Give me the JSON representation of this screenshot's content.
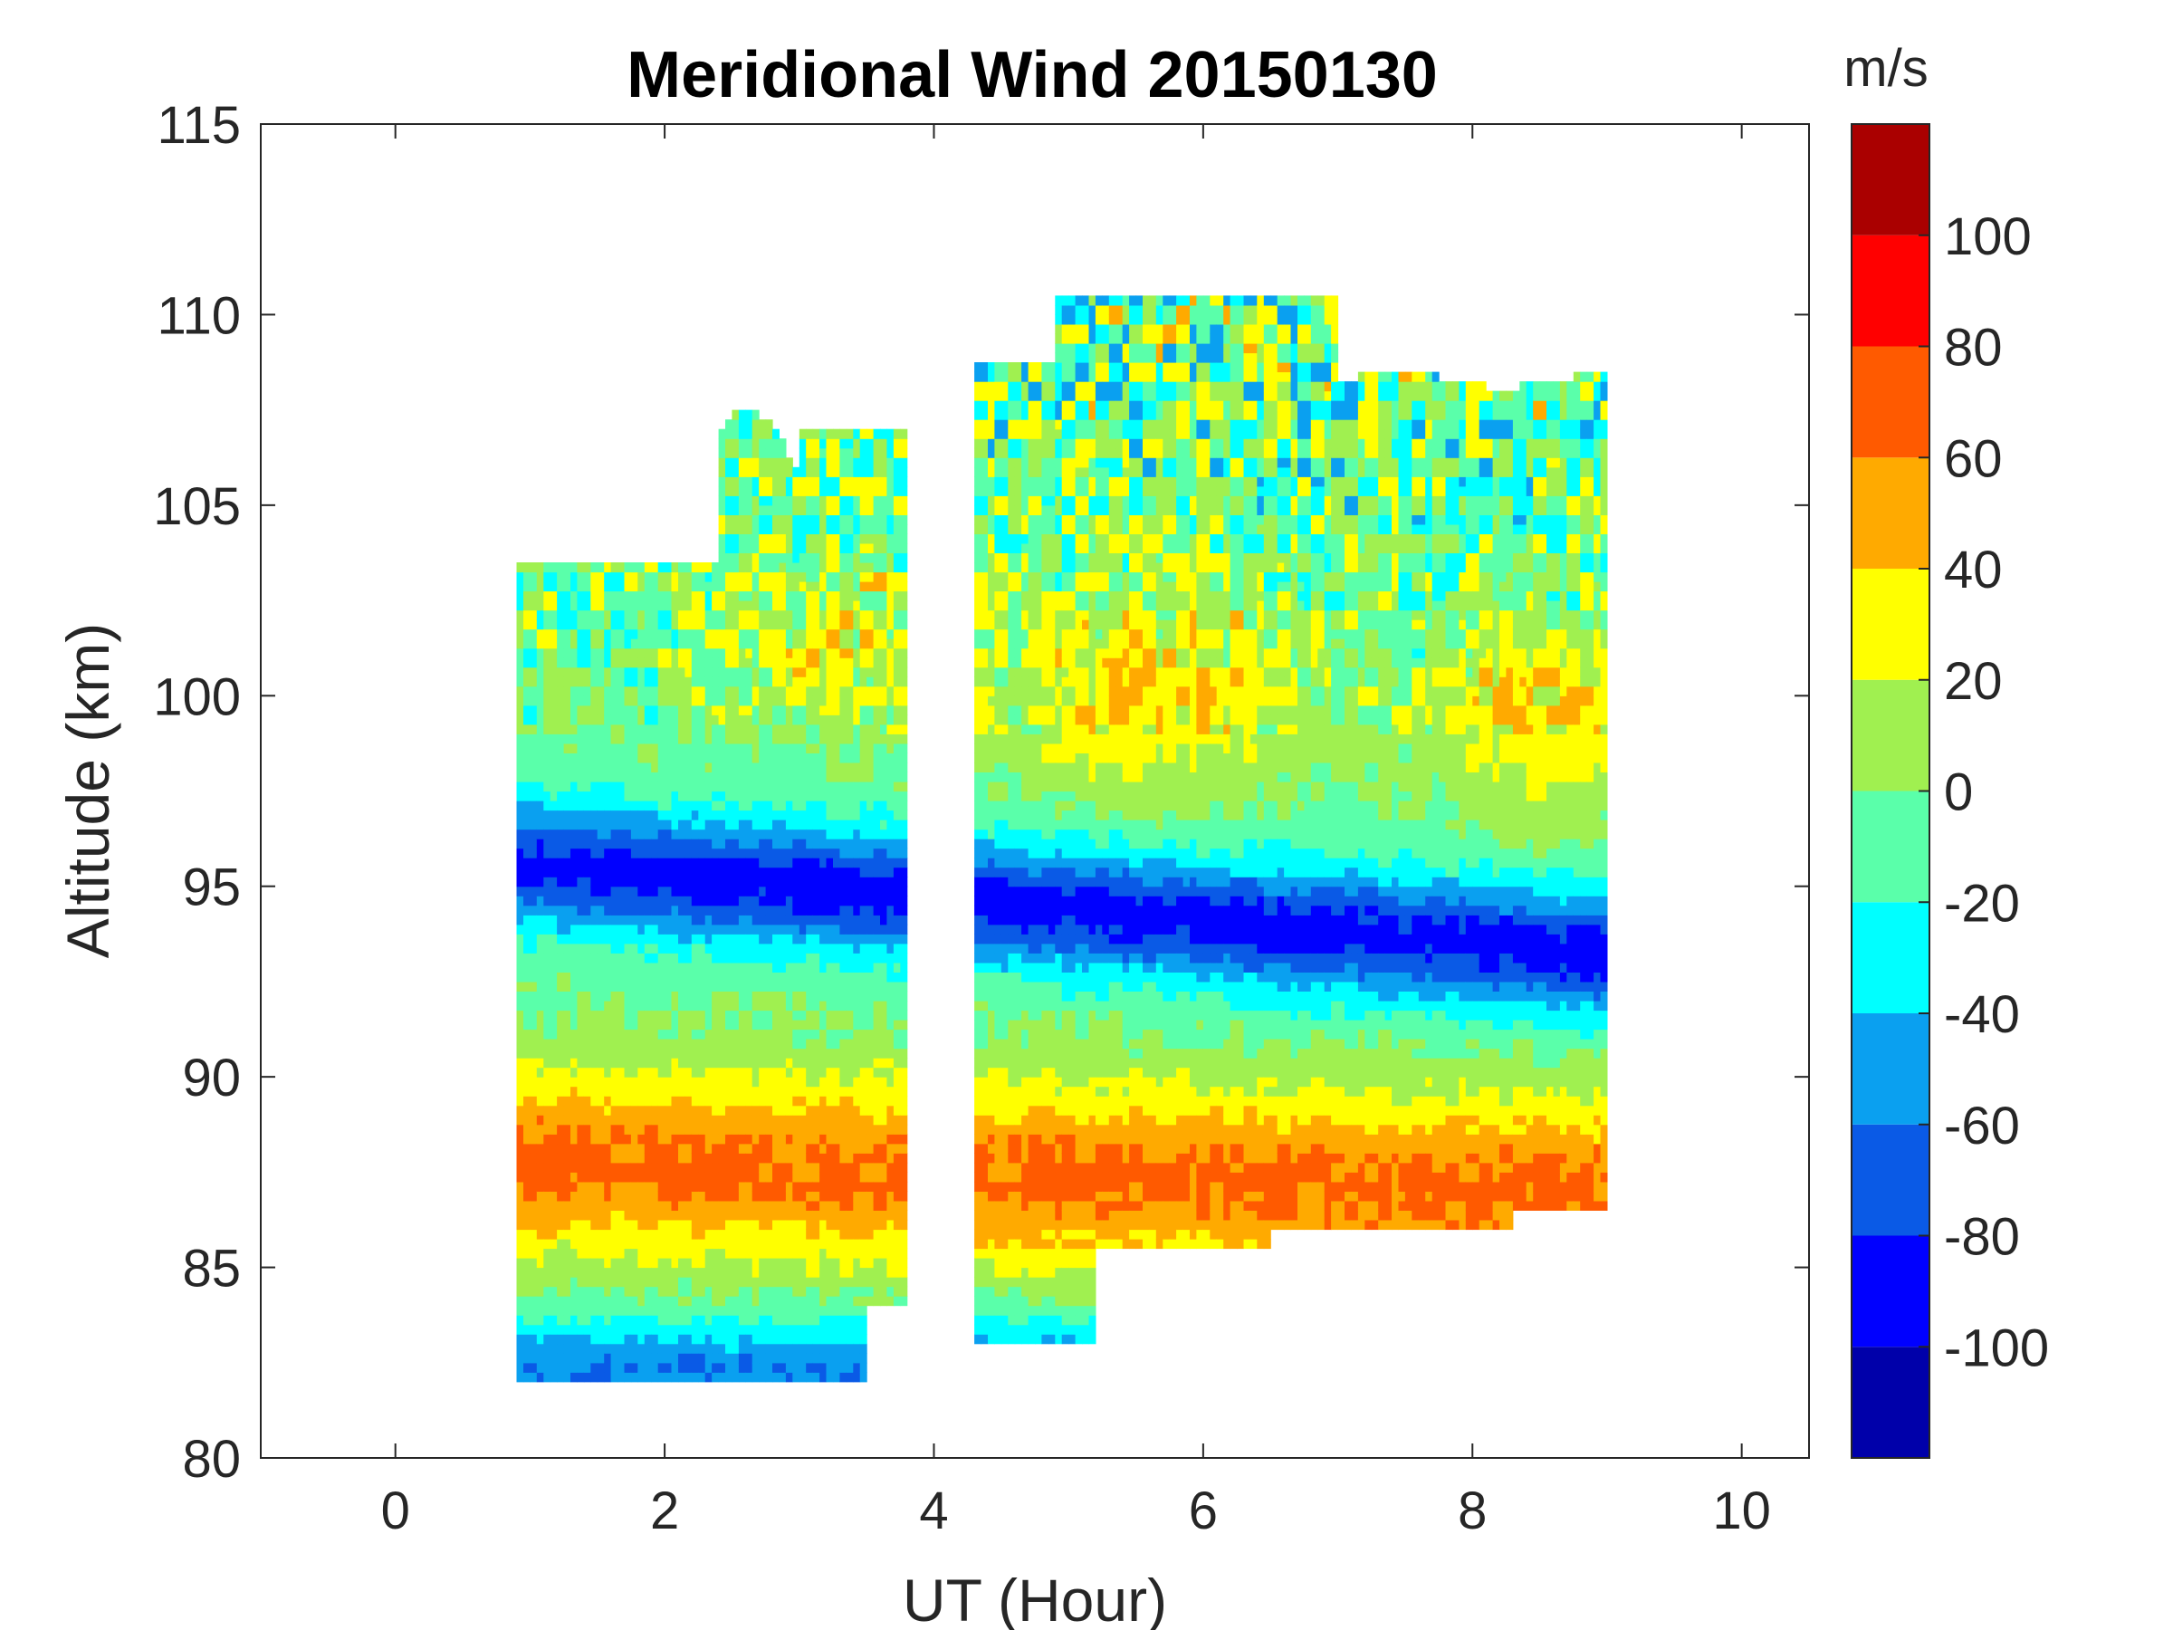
{
  "chart_data": {
    "type": "heatmap",
    "subtype": "filled-contour",
    "title": "Meridional Wind 20150130",
    "xlabel": "UT (Hour)",
    "ylabel": "Altitude (km)",
    "xlim": [
      -1,
      10.5
    ],
    "ylim": [
      80,
      115
    ],
    "xticks": [
      0,
      2,
      4,
      6,
      8,
      10
    ],
    "yticks": [
      80,
      85,
      90,
      95,
      100,
      105,
      110,
      115
    ],
    "colorbar": {
      "unit": "m/s",
      "range": [
        -120,
        120
      ],
      "ticks": [
        -100,
        -80,
        -60,
        -40,
        -20,
        0,
        20,
        40,
        60,
        80,
        100
      ],
      "levels": [
        -120,
        -100,
        -80,
        -60,
        -40,
        -20,
        0,
        20,
        40,
        60,
        80,
        100,
        120
      ],
      "colors": [
        "#0000aa",
        "#0000ff",
        "#0a5ae6",
        "#0aa0f0",
        "#00ffff",
        "#5affaa",
        "#a0f050",
        "#ffff00",
        "#ffaa00",
        "#ff5a00",
        "#ff0000",
        "#aa0000"
      ]
    },
    "data_blocks": [
      {
        "ut_range": [
          0.9,
          3.8
        ],
        "alt_range": [
          82,
          108.5
        ]
      },
      {
        "ut_range": [
          4.3,
          9.0
        ],
        "alt_range": [
          83,
          110.5
        ]
      }
    ],
    "features": [
      {
        "name": "southward jet",
        "alt_center": [
          95.5,
          93.2
        ],
        "ut": [
          1.0,
          9.0
        ],
        "min_value": -85
      },
      {
        "name": "northward jet",
        "alt_center": [
          88,
          87.2
        ],
        "ut": [
          1.0,
          9.0
        ],
        "max_value": 75
      },
      {
        "name": "upper northward region",
        "alt_center": 100,
        "ut": [
          4.8,
          9.0
        ],
        "max_value": 45
      }
    ]
  }
}
